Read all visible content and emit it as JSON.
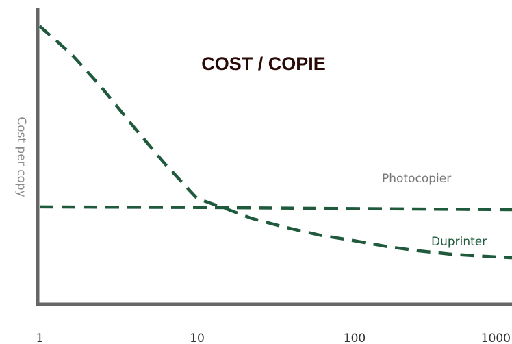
{
  "chart_data": {
    "type": "line",
    "title": "COST / COPIE",
    "xlabel": "",
    "ylabel": "Cost per copy",
    "x_scale": "log",
    "xlim": [
      1,
      1000
    ],
    "ylim": [
      0,
      100
    ],
    "x_ticks": [
      "1",
      "10",
      "100",
      "1000"
    ],
    "grid": false,
    "legend": "none",
    "colors": {
      "axis": "#666666",
      "series": "#1f5a3c",
      "photocopier_label": "#777777",
      "duprinter_label": "#1f5a3c",
      "title": "#2a0a06"
    },
    "series": [
      {
        "name": "Duprinter",
        "x": [
          1,
          1.6,
          2.5,
          4,
          6.3,
          10,
          15,
          22,
          35,
          60,
          100,
          160,
          250,
          400,
          630,
          1000
        ],
        "y": [
          98,
          88,
          76,
          62,
          49,
          37,
          33.5,
          30,
          27,
          24,
          22,
          20,
          18.5,
          17.3,
          16.6,
          16
        ]
      },
      {
        "name": "Photocopier",
        "x": [
          1,
          10,
          100,
          1000
        ],
        "y": [
          34,
          33.8,
          33.4,
          33
        ]
      }
    ]
  }
}
